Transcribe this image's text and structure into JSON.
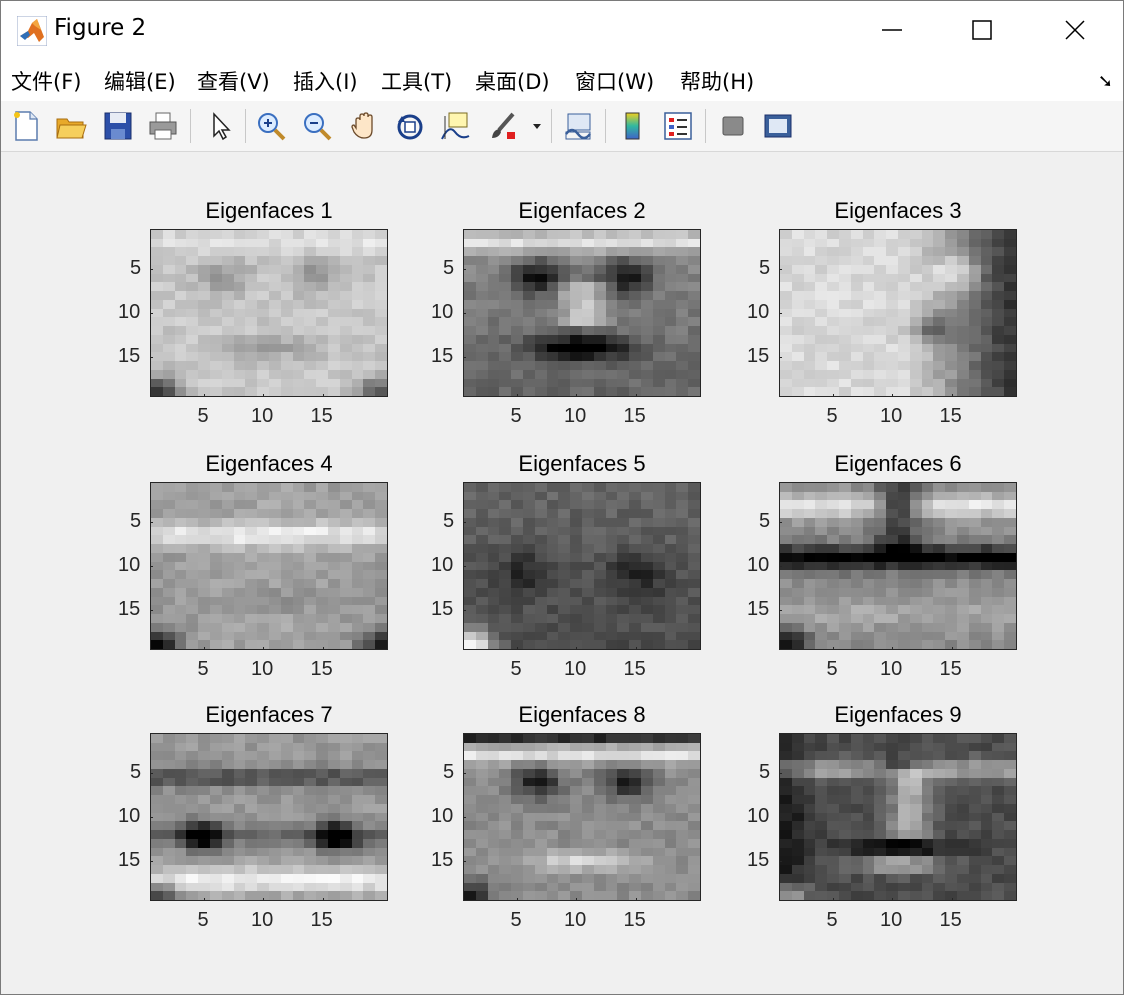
{
  "window": {
    "title": "Figure 2",
    "controls": [
      "minimize",
      "maximize",
      "close"
    ]
  },
  "menu": [
    "文件(F)",
    "编辑(E)",
    "查看(V)",
    "插入(I)",
    "工具(T)",
    "桌面(D)",
    "窗口(W)",
    "帮助(H)"
  ],
  "toolbar": {
    "buttons": [
      "new-figure-icon",
      "open-file-icon",
      "save-icon",
      "print-icon",
      "pointer-icon",
      "zoom-in-icon",
      "zoom-out-icon",
      "pan-icon",
      "rotate-3d-icon",
      "data-cursor-icon",
      "brush-icon",
      "brush-dropdown-icon",
      "link-plot-icon",
      "colorbar-icon",
      "legend-icon",
      "hide-plot-tools-icon",
      "show-plot-tools-icon"
    ],
    "accent_colors": {
      "brush_red": "#e02020",
      "colorbar_blue": "#3f63c8",
      "colorbar_yellow": "#f0d020"
    }
  },
  "chart_data": {
    "type": "heatmap",
    "colormap": "gray",
    "grid": false,
    "image_size": {
      "cols": 20,
      "rows": 19
    },
    "xticks": [
      5,
      10,
      15
    ],
    "yticks": [
      5,
      10,
      15
    ],
    "xlim": [
      0.5,
      20.5
    ],
    "ylim": [
      0.5,
      19.5
    ],
    "panels": [
      {
        "title": "Eigenfaces 1"
      },
      {
        "title": "Eigenfaces 2"
      },
      {
        "title": "Eigenfaces 3"
      },
      {
        "title": "Eigenfaces 4"
      },
      {
        "title": "Eigenfaces 5"
      },
      {
        "title": "Eigenfaces 6"
      },
      {
        "title": "Eigenfaces 7"
      },
      {
        "title": "Eigenfaces 8"
      },
      {
        "title": "Eigenfaces 9"
      }
    ]
  }
}
